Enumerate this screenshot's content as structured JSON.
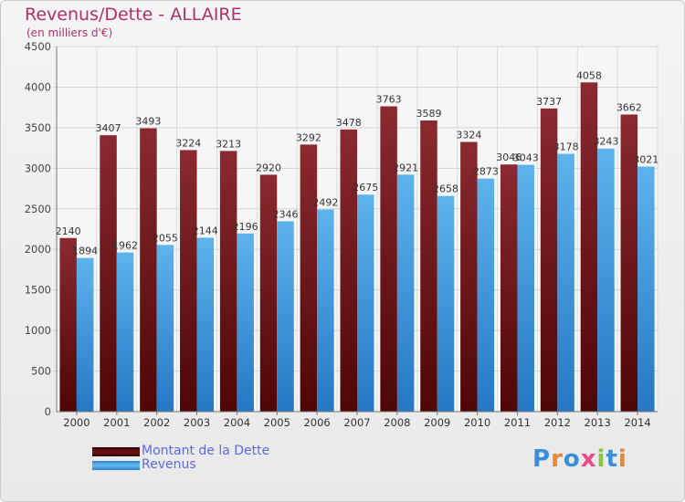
{
  "header": {
    "title": "Revenus/Dette - ALLAIRE",
    "subtitle": "(en milliers d'€)"
  },
  "colors": {
    "debt": "#7a1c22",
    "debt_dark": "#4e0808",
    "revenue": "#52a8e6",
    "revenue_dark": "#2a7fcc",
    "title": "#b0306b",
    "legend_text": "#5b6be0"
  },
  "chart_data": {
    "type": "bar",
    "title": "Revenus/Dette - ALLAIRE",
    "subtitle": "(en milliers d'€)",
    "categories": [
      "2000",
      "2001",
      "2002",
      "2003",
      "2004",
      "2005",
      "2006",
      "2007",
      "2008",
      "2009",
      "2010",
      "2011",
      "2012",
      "2013",
      "2014"
    ],
    "series": [
      {
        "name": "Montant de la Dette",
        "values": [
          2140,
          3407,
          3493,
          3224,
          3213,
          2920,
          3292,
          3478,
          3763,
          3589,
          3324,
          3046,
          3737,
          4058,
          3662
        ]
      },
      {
        "name": "Revenus",
        "values": [
          1894,
          1962,
          2055,
          2144,
          2196,
          2346,
          2492,
          2675,
          2921,
          2658,
          2873,
          3043,
          3178,
          3243,
          3021
        ]
      }
    ],
    "ylim": [
      0,
      4500
    ],
    "yticks": [
      0,
      500,
      1000,
      1500,
      2000,
      2500,
      3000,
      3500,
      4000,
      4500
    ],
    "grid": true,
    "legend": "bottom-left"
  },
  "legend": {
    "items": [
      {
        "label": "Montant de la Dette",
        "color": "#6b1015"
      },
      {
        "label": "Revenus",
        "color": "#4aa3e8"
      }
    ]
  },
  "logo": {
    "letters": [
      {
        "ch": "P",
        "color": "#3a8fd8"
      },
      {
        "ch": "r",
        "color": "#e8873a"
      },
      {
        "ch": "o",
        "color": "#3a8fd8"
      },
      {
        "ch": "x",
        "color": "#e84a8a"
      },
      {
        "ch": "i",
        "color": "#8cc63f"
      },
      {
        "ch": "t",
        "color": "#3a8fd8"
      },
      {
        "ch": "i",
        "color": "#e8873a"
      }
    ]
  }
}
